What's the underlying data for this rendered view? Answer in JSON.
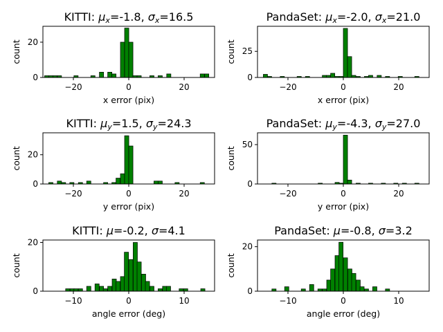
{
  "chart_data": [
    {
      "type": "bar",
      "title": "KITTI: μx=-1.8, σx=16.5",
      "title_parts": {
        "prefix": "KITTI: ",
        "mean_symbol": "μ",
        "sd_symbol": "σ",
        "subscript": "x",
        "mean": "-1.8",
        "sd": "16.5"
      },
      "xlabel": "x error (pix)",
      "ylabel": "count",
      "xlim": [
        -31,
        31
      ],
      "ylim": [
        0,
        29
      ],
      "xticks": [
        -20,
        0,
        20
      ],
      "yticks": [
        0,
        20
      ],
      "bin_width": 1.52,
      "bins": [
        {
          "x": -30.4,
          "count": 1
        },
        {
          "x": -28.9,
          "count": 1
        },
        {
          "x": -27.4,
          "count": 1
        },
        {
          "x": -25.8,
          "count": 1
        },
        {
          "x": -19.8,
          "count": 1
        },
        {
          "x": -13.7,
          "count": 1
        },
        {
          "x": -10.6,
          "count": 3
        },
        {
          "x": -7.6,
          "count": 3
        },
        {
          "x": -6.1,
          "count": 2
        },
        {
          "x": -3.0,
          "count": 20
        },
        {
          "x": -1.5,
          "count": 28
        },
        {
          "x": 0.0,
          "count": 20
        },
        {
          "x": 1.5,
          "count": 1
        },
        {
          "x": 3.0,
          "count": 1
        },
        {
          "x": 7.6,
          "count": 1
        },
        {
          "x": 10.6,
          "count": 1
        },
        {
          "x": 13.7,
          "count": 2
        },
        {
          "x": 25.8,
          "count": 2
        },
        {
          "x": 27.4,
          "count": 2
        }
      ]
    },
    {
      "type": "bar",
      "title": "PandaSet: μx=-2.0, σx=21.0",
      "title_parts": {
        "prefix": "PandaSet: ",
        "mean_symbol": "μ",
        "sd_symbol": "σ",
        "subscript": "x",
        "mean": "-2.0",
        "sd": "21.0"
      },
      "xlabel": "x error (pix)",
      "ylabel": "count",
      "xlim": [
        -31,
        31
      ],
      "ylim": [
        0,
        49
      ],
      "xticks": [
        -20,
        0,
        20
      ],
      "yticks": [
        0,
        25
      ],
      "bin_width": 1.52,
      "bins": [
        {
          "x": -28.9,
          "count": 3
        },
        {
          "x": -27.4,
          "count": 1
        },
        {
          "x": -22.8,
          "count": 1
        },
        {
          "x": -16.7,
          "count": 1
        },
        {
          "x": -13.7,
          "count": 1
        },
        {
          "x": -7.6,
          "count": 2
        },
        {
          "x": -6.1,
          "count": 2
        },
        {
          "x": -4.6,
          "count": 4
        },
        {
          "x": -3.0,
          "count": 1
        },
        {
          "x": -1.5,
          "count": 1
        },
        {
          "x": 0.0,
          "count": 47
        },
        {
          "x": 1.5,
          "count": 20
        },
        {
          "x": 3.0,
          "count": 2
        },
        {
          "x": 4.6,
          "count": 1
        },
        {
          "x": 7.6,
          "count": 1
        },
        {
          "x": 9.1,
          "count": 2
        },
        {
          "x": 12.2,
          "count": 2
        },
        {
          "x": 15.2,
          "count": 1
        },
        {
          "x": 19.8,
          "count": 1
        },
        {
          "x": 25.8,
          "count": 1
        }
      ]
    },
    {
      "type": "bar",
      "title": "KITTI: μy=1.5, σy=24.3",
      "title_parts": {
        "prefix": "KITTI: ",
        "mean_symbol": "μ",
        "sd_symbol": "σ",
        "subscript": "y",
        "mean": "1.5",
        "sd": "24.3"
      },
      "xlabel": "y error (pix)",
      "ylabel": "count",
      "xlim": [
        -31,
        31
      ],
      "ylim": [
        0,
        35
      ],
      "xticks": [
        -20,
        0,
        20
      ],
      "yticks": [
        0,
        20
      ],
      "bin_width": 1.52,
      "bins": [
        {
          "x": -28.9,
          "count": 1
        },
        {
          "x": -25.8,
          "count": 2
        },
        {
          "x": -24.3,
          "count": 1
        },
        {
          "x": -21.3,
          "count": 1
        },
        {
          "x": -18.2,
          "count": 1
        },
        {
          "x": -15.2,
          "count": 2
        },
        {
          "x": -9.1,
          "count": 1
        },
        {
          "x": -6.1,
          "count": 1
        },
        {
          "x": -4.6,
          "count": 4
        },
        {
          "x": -3.0,
          "count": 7
        },
        {
          "x": -1.5,
          "count": 33
        },
        {
          "x": 0.0,
          "count": 26
        },
        {
          "x": 9.1,
          "count": 2
        },
        {
          "x": 10.6,
          "count": 2
        },
        {
          "x": 16.7,
          "count": 1
        },
        {
          "x": 25.8,
          "count": 1
        }
      ]
    },
    {
      "type": "bar",
      "title": "PandaSet: μy=-4.3, σy=27.0",
      "title_parts": {
        "prefix": "PandaSet: ",
        "mean_symbol": "μ",
        "sd_symbol": "σ",
        "subscript": "y",
        "mean": "-4.3",
        "sd": "27.0"
      },
      "xlabel": "y error (pix)",
      "ylabel": "count",
      "xlim": [
        -31,
        31
      ],
      "ylim": [
        0,
        65
      ],
      "xticks": [
        -20,
        0,
        20
      ],
      "yticks": [
        0,
        50
      ],
      "bin_width": 1.52,
      "bins": [
        {
          "x": -25.8,
          "count": 1
        },
        {
          "x": -9.1,
          "count": 1
        },
        {
          "x": -3.0,
          "count": 2
        },
        {
          "x": -1.5,
          "count": 1
        },
        {
          "x": 0.0,
          "count": 62
        },
        {
          "x": 1.5,
          "count": 5
        },
        {
          "x": 4.6,
          "count": 1
        },
        {
          "x": 9.1,
          "count": 1
        },
        {
          "x": 13.7,
          "count": 1
        },
        {
          "x": 18.2,
          "count": 1
        },
        {
          "x": 21.3,
          "count": 1
        },
        {
          "x": 25.8,
          "count": 1
        }
      ]
    },
    {
      "type": "bar",
      "title": "KITTI: μ=-0.2, σ=4.1",
      "title_parts": {
        "prefix": "KITTI: ",
        "mean_symbol": "μ",
        "sd_symbol": "σ",
        "subscript": "",
        "mean": "-0.2",
        "sd": "4.1"
      },
      "xlabel": "angle error (deg)",
      "ylabel": "count",
      "xlim": [
        -15.5,
        15.5
      ],
      "ylim": [
        0,
        21
      ],
      "xticks": [
        -10,
        0,
        10
      ],
      "yticks": [
        0,
        20
      ],
      "bin_width": 0.76,
      "bins": [
        {
          "x": -11.4,
          "count": 1
        },
        {
          "x": -10.6,
          "count": 1
        },
        {
          "x": -9.9,
          "count": 1
        },
        {
          "x": -9.1,
          "count": 1
        },
        {
          "x": -7.6,
          "count": 2
        },
        {
          "x": -6.1,
          "count": 3
        },
        {
          "x": -5.3,
          "count": 2
        },
        {
          "x": -4.6,
          "count": 1
        },
        {
          "x": -3.8,
          "count": 2
        },
        {
          "x": -3.0,
          "count": 5
        },
        {
          "x": -2.3,
          "count": 4
        },
        {
          "x": -1.5,
          "count": 6
        },
        {
          "x": -0.8,
          "count": 16
        },
        {
          "x": 0.0,
          "count": 13
        },
        {
          "x": 0.8,
          "count": 20
        },
        {
          "x": 1.5,
          "count": 12
        },
        {
          "x": 2.3,
          "count": 7
        },
        {
          "x": 3.0,
          "count": 4
        },
        {
          "x": 3.8,
          "count": 2
        },
        {
          "x": 5.3,
          "count": 1
        },
        {
          "x": 6.1,
          "count": 2
        },
        {
          "x": 6.8,
          "count": 2
        },
        {
          "x": 9.1,
          "count": 1
        },
        {
          "x": 9.9,
          "count": 1
        },
        {
          "x": 13.0,
          "count": 1
        }
      ]
    },
    {
      "type": "bar",
      "title": "PandaSet: μ=-0.8, σ=3.2",
      "title_parts": {
        "prefix": "PandaSet: ",
        "mean_symbol": "μ",
        "sd_symbol": "σ",
        "subscript": "",
        "mean": "-0.8",
        "sd": "3.2"
      },
      "xlabel": "angle error (deg)",
      "ylabel": "count",
      "xlim": [
        -15.5,
        15.5
      ],
      "ylim": [
        0,
        23
      ],
      "xticks": [
        -10,
        0,
        10
      ],
      "yticks": [
        0,
        20
      ],
      "bin_width": 0.76,
      "bins": [
        {
          "x": -12.9,
          "count": 1
        },
        {
          "x": -10.6,
          "count": 2
        },
        {
          "x": -7.6,
          "count": 1
        },
        {
          "x": -6.1,
          "count": 3
        },
        {
          "x": -4.6,
          "count": 1
        },
        {
          "x": -3.8,
          "count": 1
        },
        {
          "x": -3.0,
          "count": 5
        },
        {
          "x": -2.3,
          "count": 10
        },
        {
          "x": -1.5,
          "count": 16
        },
        {
          "x": -0.8,
          "count": 22
        },
        {
          "x": 0.0,
          "count": 15
        },
        {
          "x": 0.8,
          "count": 10
        },
        {
          "x": 1.5,
          "count": 8
        },
        {
          "x": 2.3,
          "count": 5
        },
        {
          "x": 3.0,
          "count": 2
        },
        {
          "x": 3.8,
          "count": 1
        },
        {
          "x": 5.3,
          "count": 2
        },
        {
          "x": 7.6,
          "count": 1
        }
      ]
    }
  ]
}
